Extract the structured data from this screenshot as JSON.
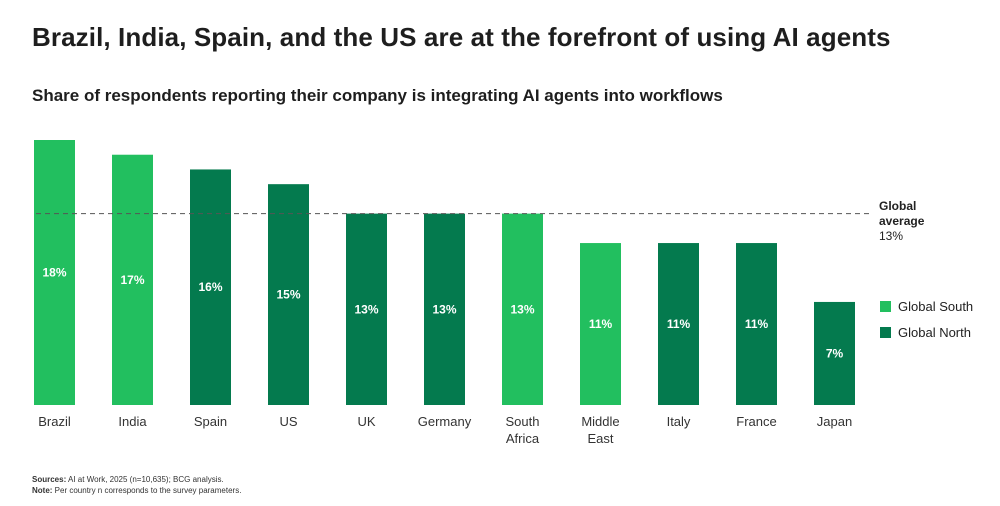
{
  "title": "Brazil, India, Spain, and the US are at the forefront of using AI agents",
  "subtitle": "Share of respondents reporting their company is integrating AI agents into workflows",
  "colors": {
    "global_south": "#22bf5f",
    "global_north": "#047a4e",
    "average_line": "#555555",
    "value_label": "#ffffff"
  },
  "chart_data": {
    "type": "bar",
    "unit": "%",
    "ylim": [
      0,
      18
    ],
    "grid": false,
    "legend_placement": "right",
    "categories": [
      {
        "label": [
          "Brazil"
        ],
        "value": 18,
        "value_label": "18%",
        "group": "Global South"
      },
      {
        "label": [
          "India"
        ],
        "value": 17,
        "value_label": "17%",
        "group": "Global South"
      },
      {
        "label": [
          "Spain"
        ],
        "value": 16,
        "value_label": "16%",
        "group": "Global North"
      },
      {
        "label": [
          "US"
        ],
        "value": 15,
        "value_label": "15%",
        "group": "Global North"
      },
      {
        "label": [
          "UK"
        ],
        "value": 13,
        "value_label": "13%",
        "group": "Global North"
      },
      {
        "label": [
          "Germany"
        ],
        "value": 13,
        "value_label": "13%",
        "group": "Global North"
      },
      {
        "label": [
          "South",
          "Africa"
        ],
        "value": 13,
        "value_label": "13%",
        "group": "Global South"
      },
      {
        "label": [
          "Middle",
          "East"
        ],
        "value": 11,
        "value_label": "11%",
        "group": "Global South"
      },
      {
        "label": [
          "Italy"
        ],
        "value": 11,
        "value_label": "11%",
        "group": "Global North"
      },
      {
        "label": [
          "France"
        ],
        "value": 11,
        "value_label": "11%",
        "group": "Global North"
      },
      {
        "label": [
          "Japan"
        ],
        "value": 7,
        "value_label": "7%",
        "group": "Global North"
      }
    ],
    "reference_line": {
      "value": 13,
      "label": [
        "Global",
        "average",
        "13%"
      ]
    },
    "legend": [
      {
        "name": "Global South",
        "color_key": "global_south"
      },
      {
        "name": "Global North",
        "color_key": "global_north"
      }
    ]
  },
  "footnotes": {
    "sources_label": "Sources:",
    "sources_text": " AI at Work, 2025 (n=10,635); BCG analysis.",
    "note_label": "Note:",
    "note_text": " Per country n corresponds to the survey parameters."
  }
}
